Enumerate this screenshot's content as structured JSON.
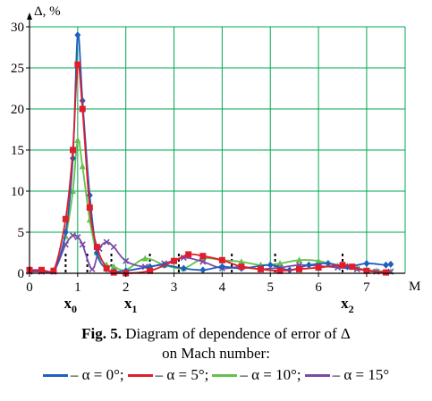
{
  "caption": {
    "fig_label": "Fig. 5.",
    "line1": "Diagram of dependence of error of Δ",
    "line2": "on Mach number:"
  },
  "legend": [
    {
      "label": "– α = 0°",
      "sep": ";",
      "color": "#1f5fbf"
    },
    {
      "label": "– α = 5°",
      "sep": ";",
      "color": "#e01d2c"
    },
    {
      "label": "– α = 10°",
      "sep": ";",
      "color": "#62c24b"
    },
    {
      "label": "– α = 15°",
      "sep": "",
      "color": "#7a4aa6"
    }
  ],
  "chart_data": {
    "type": "line",
    "title": "",
    "xlabel": "M",
    "ylabel": "Δ, %",
    "xlim": [
      0,
      7.8
    ],
    "ylim": [
      0,
      30
    ],
    "xticks": [
      0,
      1,
      2,
      3,
      4,
      5,
      6,
      7
    ],
    "yticks": [
      0,
      5,
      10,
      15,
      20,
      25,
      30
    ],
    "grid": true,
    "grid_color": "#00a651",
    "annotations": [
      {
        "text": "x",
        "sub": "0",
        "x": 0.85
      },
      {
        "text": "x",
        "sub": "1",
        "x": 2.1
      },
      {
        "text": "x",
        "sub": "2",
        "x": 6.6
      }
    ],
    "markers_x": [
      0.75,
      1.2,
      1.7,
      2.5,
      3.1,
      4.2,
      5.1,
      6.5
    ],
    "series": [
      {
        "name": "α = 0°",
        "color": "#1f5fbf",
        "marker": "diamond",
        "x": [
          0,
          0.25,
          0.5,
          0.75,
          0.9,
          1.0,
          1.1,
          1.25,
          1.4,
          1.6,
          1.75,
          2.0,
          2.5,
          2.8,
          3.2,
          3.6,
          4.0,
          4.4,
          5.0,
          5.4,
          5.8,
          6.2,
          6.6,
          7.0,
          7.4,
          7.5
        ],
        "y": [
          0.3,
          0.3,
          0.3,
          5.0,
          14.0,
          29.0,
          21.0,
          9.5,
          2.5,
          0.5,
          0.2,
          0.3,
          0.8,
          1.0,
          0.6,
          0.4,
          0.8,
          0.6,
          1.0,
          0.4,
          1.0,
          1.2,
          0.8,
          1.2,
          1.0,
          1.1
        ]
      },
      {
        "name": "α = 5°",
        "color": "#e01d2c",
        "marker": "square",
        "x": [
          0,
          0.25,
          0.5,
          0.75,
          0.9,
          1.0,
          1.1,
          1.25,
          1.4,
          1.6,
          1.75,
          2.0,
          2.5,
          3.0,
          3.3,
          3.6,
          4.0,
          4.4,
          4.8,
          5.2,
          5.6,
          6.0,
          6.5,
          6.7,
          7.0,
          7.4
        ],
        "y": [
          0.4,
          0.4,
          0.3,
          6.6,
          15.0,
          25.4,
          20.0,
          8.0,
          3.2,
          0.6,
          0.1,
          0.0,
          0.3,
          1.5,
          2.3,
          2.1,
          1.6,
          0.8,
          0.5,
          0.3,
          0.5,
          0.7,
          1.0,
          0.8,
          0.3,
          0.1
        ]
      },
      {
        "name": "α = 10°",
        "color": "#62c24b",
        "marker": "triangle",
        "x": [
          0,
          0.25,
          0.5,
          0.75,
          0.9,
          1.0,
          1.1,
          1.25,
          1.4,
          1.6,
          1.75,
          2.0,
          2.4,
          2.8,
          3.2,
          3.6,
          4.0,
          4.4,
          4.8,
          5.2,
          5.6,
          6.0,
          6.4,
          6.8,
          7.2,
          7.5
        ],
        "y": [
          0.3,
          0.3,
          0.2,
          4.5,
          10.0,
          16.2,
          13.0,
          6.5,
          2.5,
          1.0,
          0.8,
          0.4,
          1.8,
          1.0,
          0.6,
          1.8,
          1.6,
          1.4,
          1.0,
          1.2,
          1.6,
          1.5,
          0.9,
          0.6,
          0.3,
          0.2
        ]
      },
      {
        "name": "α = 15°",
        "color": "#7a4aa6",
        "marker": "x",
        "x": [
          0,
          0.25,
          0.5,
          0.75,
          0.9,
          1.0,
          1.1,
          1.3,
          1.45,
          1.6,
          1.75,
          2.0,
          2.4,
          2.8,
          3.2,
          3.6,
          4.0,
          4.4,
          4.8,
          5.2,
          5.6,
          6.0,
          6.4,
          6.8,
          7.2,
          7.5
        ],
        "y": [
          0.2,
          0.2,
          0.2,
          3.5,
          4.6,
          4.4,
          3.5,
          0.5,
          3.0,
          3.8,
          3.2,
          1.5,
          0.8,
          1.2,
          1.9,
          1.4,
          0.6,
          0.8,
          0.5,
          0.7,
          1.0,
          0.9,
          0.7,
          0.5,
          0.2,
          0.2
        ]
      }
    ]
  }
}
